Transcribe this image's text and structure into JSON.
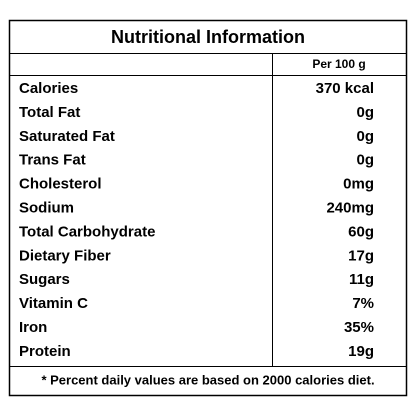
{
  "title": "Nutritional Information",
  "column_header": "Per 100 g",
  "rows": [
    [
      "Calories",
      "370 kcal"
    ],
    [
      "Total Fat",
      "0g"
    ],
    [
      "Saturated Fat",
      "0g"
    ],
    [
      "Trans Fat",
      "0g"
    ],
    [
      "Cholesterol",
      "0mg"
    ],
    [
      "Sodium",
      "240mg"
    ],
    [
      "Total Carbohydrate",
      "60g"
    ],
    [
      "Dietary Fiber",
      "17g"
    ],
    [
      "Sugars",
      "11g"
    ],
    [
      "Vitamin C",
      "7%"
    ],
    [
      "Iron",
      "35%"
    ],
    [
      "Protein",
      "19g"
    ]
  ],
  "footnote": "* Percent daily values are based on 2000 calories diet."
}
